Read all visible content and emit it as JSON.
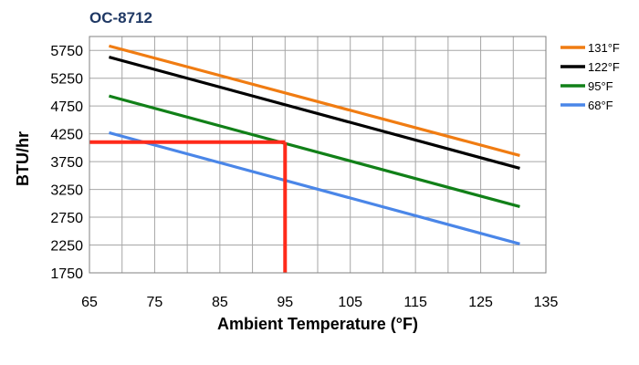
{
  "chart_data": {
    "type": "line",
    "title": "OC-8712",
    "title_color": "#1f3864",
    "xlabel": "Ambient Temperature (°F)",
    "ylabel": "BTU/hr",
    "xlim": [
      65,
      135
    ],
    "ylim": [
      1750,
      6000
    ],
    "x_ticks": [
      65,
      75,
      85,
      95,
      105,
      115,
      125,
      135
    ],
    "y_ticks": [
      1750,
      2250,
      2750,
      3250,
      3750,
      4250,
      4750,
      5250,
      5750
    ],
    "x_gridlines": [
      65,
      70,
      75,
      80,
      85,
      90,
      95,
      100,
      105,
      110,
      115,
      120,
      125,
      130,
      135
    ],
    "y_gridlines": [
      1750,
      2250,
      2750,
      3250,
      3750,
      4250,
      4750,
      5250,
      5750
    ],
    "grid": true,
    "legend_position": "top-right",
    "series": [
      {
        "name": "131°F",
        "color": "#f07c12",
        "x": [
          68,
          131
        ],
        "y": [
          5830,
          3860
        ]
      },
      {
        "name": "122°F",
        "color": "#000000",
        "x": [
          68,
          131
        ],
        "y": [
          5630,
          3630
        ]
      },
      {
        "name": "95°F",
        "color": "#118018",
        "x": [
          68,
          131
        ],
        "y": [
          4930,
          2940
        ]
      },
      {
        "name": "68°F",
        "color": "#4a86e8",
        "x": [
          68,
          131
        ],
        "y": [
          4270,
          2270
        ]
      }
    ],
    "annotation": {
      "color": "#ff2a1a",
      "x": 95,
      "y": 4100,
      "x_from": 65,
      "y_to": 1750
    }
  }
}
